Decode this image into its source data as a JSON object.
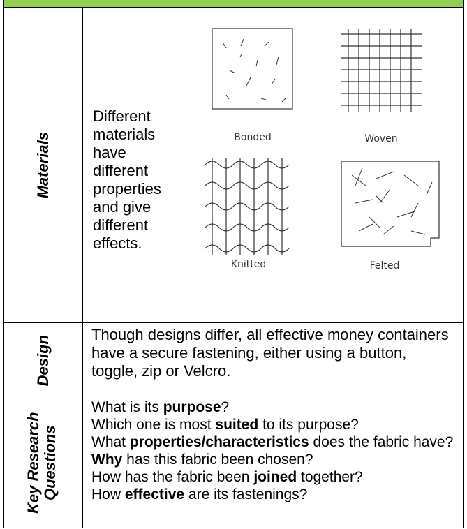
{
  "rows": [
    {
      "label": "Materials",
      "text": "Different materials have different properties and give different effects.",
      "fabrics": [
        "Bonded",
        "Woven",
        "Knitted",
        "Felted"
      ]
    },
    {
      "label": "Design",
      "text": "Though designs differ, all effective money containers have a secure fastening, either using a button, toggle, zip or Velcro."
    },
    {
      "label": "Key Research Questions",
      "lines": [
        [
          {
            "text": "What is its "
          },
          {
            "text": "purpose",
            "bold": true
          },
          {
            "text": "?"
          }
        ],
        [
          {
            "text": "Which one is most "
          },
          {
            "text": "suited",
            "bold": true
          },
          {
            "text": " to its purpose?"
          }
        ],
        [
          {
            "text": "What "
          },
          {
            "text": "properties/characteristics",
            "bold": true
          },
          {
            "text": " does the fabric have?"
          }
        ],
        [
          {
            "text": "Why",
            "bold": true
          },
          {
            "text": " has this fabric been chosen?"
          }
        ],
        [
          {
            "text": "How has the fabric been "
          },
          {
            "text": "joined",
            "bold": true
          },
          {
            "text": " together?"
          }
        ],
        [
          {
            "text": "How "
          },
          {
            "text": "effective",
            "bold": true
          },
          {
            "text": " are its fastenings?"
          }
        ]
      ]
    }
  ]
}
